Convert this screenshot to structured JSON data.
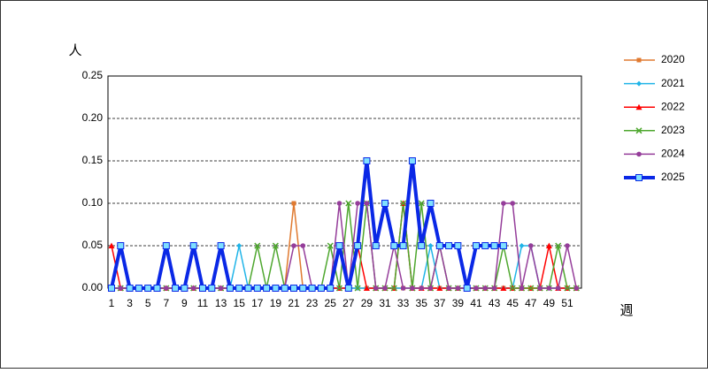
{
  "chart_data": {
    "type": "line",
    "y_label": "人",
    "x_label": "週",
    "categories": [
      1,
      null,
      3,
      null,
      5,
      null,
      7,
      null,
      9,
      null,
      11,
      null,
      13,
      null,
      15,
      null,
      17,
      null,
      19,
      null,
      21,
      null,
      23,
      null,
      25,
      null,
      27,
      null,
      29,
      null,
      31,
      null,
      33,
      null,
      35,
      null,
      37,
      null,
      39,
      null,
      41,
      null,
      43,
      null,
      45,
      null,
      47,
      null,
      49,
      null,
      51,
      null
    ],
    "ylim": [
      0,
      0.25
    ],
    "yticks": [
      {
        "value": 0,
        "label": "0.00"
      },
      {
        "value": 0.05,
        "label": "0.05"
      },
      {
        "value": 0.1,
        "label": "0.10"
      },
      {
        "value": 0.15,
        "label": "0.15"
      },
      {
        "value": 0.2,
        "label": "0.20"
      },
      {
        "value": 0.25,
        "label": "0.25"
      }
    ],
    "grid": true,
    "series": [
      {
        "name": "2020",
        "color": "#e07a30",
        "marker": "square",
        "width": 1.5,
        "values": [
          0,
          0,
          0,
          0,
          0,
          0,
          0,
          0,
          0,
          0,
          0,
          0,
          0,
          0,
          0,
          0,
          0,
          0,
          0,
          0,
          0.1,
          0,
          0,
          0,
          0,
          0,
          0,
          0,
          0,
          0,
          0,
          0,
          0,
          0,
          0,
          0,
          0,
          0,
          0,
          0,
          0,
          0,
          0,
          0,
          0,
          0,
          0,
          0,
          0,
          0,
          0,
          0
        ]
      },
      {
        "name": "2021",
        "color": "#1fb4e8",
        "marker": "diamond",
        "width": 1.5,
        "values": [
          0,
          0,
          0,
          0,
          0,
          0,
          0,
          0,
          0,
          0,
          0,
          0,
          0,
          0,
          0.05,
          0,
          0,
          0,
          0,
          0,
          0,
          0,
          0,
          0,
          0,
          0,
          0,
          0,
          0,
          0,
          0,
          0,
          0,
          0,
          0,
          0.05,
          0,
          0,
          0,
          0,
          0,
          0,
          0,
          0,
          0,
          0.05,
          0.05,
          0,
          0,
          0,
          0,
          0
        ]
      },
      {
        "name": "2022",
        "color": "#ff0000",
        "marker": "triangle",
        "width": 1.5,
        "values": [
          0.05,
          0,
          0,
          0,
          0,
          0,
          0,
          0,
          0,
          0,
          0,
          0,
          0,
          0,
          0,
          0,
          0,
          0,
          0,
          0,
          0,
          0,
          0,
          0,
          0,
          0,
          0,
          0.05,
          0,
          0,
          0,
          0,
          0.1,
          0,
          0,
          0,
          0,
          0,
          0,
          0,
          0,
          0,
          0,
          0,
          0,
          0,
          0,
          0,
          0.05,
          0,
          0,
          0
        ]
      },
      {
        "name": "2023",
        "color": "#4ea72e",
        "marker": "x",
        "width": 1.5,
        "values": [
          0,
          0,
          0,
          0,
          0,
          0,
          0,
          0,
          0,
          0,
          0,
          0,
          0,
          0,
          0,
          0,
          0.05,
          0,
          0.05,
          0,
          0,
          0,
          0,
          0,
          0.05,
          0,
          0.1,
          0,
          0.1,
          0,
          0,
          0,
          0.1,
          0,
          0.1,
          0,
          0.05,
          0,
          0,
          0,
          0,
          0,
          0,
          0.05,
          0,
          0,
          0,
          0,
          0,
          0.05,
          0,
          0
        ]
      },
      {
        "name": "2024",
        "color": "#953d9a",
        "marker": "circle",
        "width": 1.5,
        "values": [
          0,
          0,
          0,
          0,
          0,
          0,
          0,
          0,
          0,
          0,
          0,
          0,
          0,
          0,
          0,
          0,
          0,
          0,
          0,
          0,
          0.05,
          0.05,
          0,
          0,
          0,
          0.1,
          0,
          0.1,
          0.1,
          0,
          0,
          0.05,
          0,
          0,
          0,
          0,
          0.05,
          0,
          0,
          0,
          0,
          0,
          0,
          0.1,
          0.1,
          0,
          0.05,
          0,
          0,
          0,
          0.05,
          0
        ]
      },
      {
        "name": "2025",
        "color": "#0a28e6",
        "marker": "bigsquare",
        "width": 4,
        "values": [
          0,
          0.05,
          0,
          0,
          0,
          0,
          0.05,
          0,
          0,
          0.05,
          0,
          0,
          0.05,
          0,
          0,
          0,
          0,
          0,
          0,
          0,
          0,
          0,
          0,
          0,
          0,
          0.05,
          0,
          0.05,
          0.15,
          0.05,
          0.1,
          0.05,
          0.05,
          0.15,
          0.05,
          0.1,
          0.05,
          0.05,
          0.05,
          0,
          0.05,
          0.05,
          0.05,
          0.05,
          null,
          null,
          null,
          null,
          null,
          null,
          null,
          null
        ]
      }
    ]
  }
}
